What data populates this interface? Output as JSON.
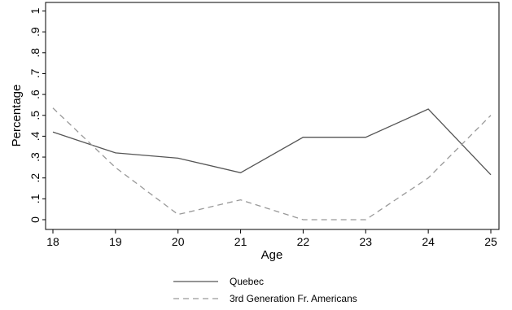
{
  "chart_data": {
    "type": "line",
    "xlabel": "Age",
    "ylabel": "Percentage",
    "x": [
      18,
      19,
      20,
      21,
      22,
      23,
      24,
      25
    ],
    "xticks": [
      "18",
      "19",
      "20",
      "21",
      "22",
      "23",
      "24",
      "25"
    ],
    "xlim": [
      18,
      25
    ],
    "yticks": [
      {
        "value": 0,
        "label": "0"
      },
      {
        "value": 0.1,
        "label": ".1"
      },
      {
        "value": 0.2,
        "label": ".2"
      },
      {
        "value": 0.3,
        "label": ".3"
      },
      {
        "value": 0.4,
        "label": ".4"
      },
      {
        "value": 0.5,
        "label": ".5"
      },
      {
        "value": 0.6,
        "label": ".6"
      },
      {
        "value": 0.7,
        "label": ".7"
      },
      {
        "value": 0.8,
        "label": ".8"
      },
      {
        "value": 0.9,
        "label": ".9"
      },
      {
        "value": 1,
        "label": "1"
      }
    ],
    "ylim": [
      0,
      1
    ],
    "grid": false,
    "legend_position": "bottom",
    "series": [
      {
        "name": "Quebec",
        "color": "#555555",
        "dash": "solid",
        "values": [
          0.42,
          0.32,
          0.295,
          0.225,
          0.395,
          0.395,
          0.53,
          0.215
        ]
      },
      {
        "name": "3rd Generation Fr. Americans",
        "color": "#999999",
        "dash": "dashed",
        "values": [
          0.535,
          0.25,
          0.025,
          0.095,
          0.0,
          0.0,
          0.2,
          0.5
        ]
      }
    ]
  }
}
